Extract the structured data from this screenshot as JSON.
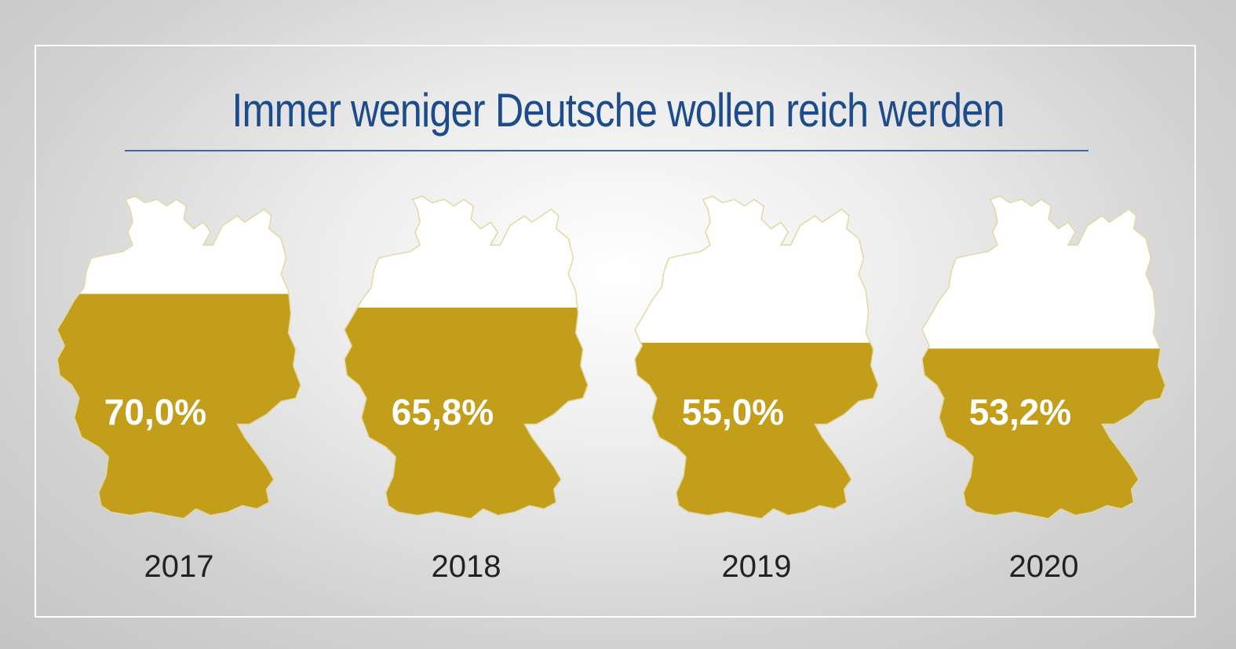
{
  "title": "Immer weniger Deutsche wollen reich werden",
  "colors": {
    "fill": "#c29e1a",
    "empty": "#ffffff",
    "outline": "#e3d7a3",
    "title": "#1d4c8a",
    "label": "#ffffff",
    "year": "#222222"
  },
  "chart_data": {
    "type": "bar",
    "title": "Immer weniger Deutsche wollen reich werden",
    "categories": [
      "2017",
      "2018",
      "2019",
      "2020"
    ],
    "values": [
      70.0,
      65.8,
      55.0,
      53.2
    ],
    "value_labels": [
      "70,0%",
      "65,8%",
      "55,0%",
      "53,2%"
    ],
    "unit": "%",
    "ylim": [
      0,
      100
    ],
    "grid": false
  }
}
